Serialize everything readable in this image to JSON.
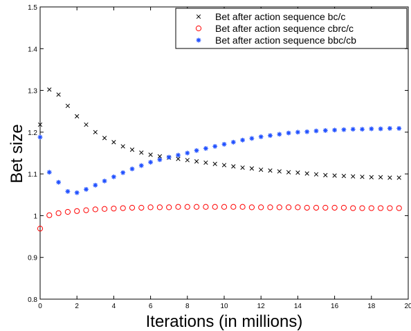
{
  "chart_data": {
    "type": "scatter",
    "title": "",
    "xlabel": "Iterations (in millions)",
    "ylabel": "Bet size",
    "xlim": [
      0,
      20
    ],
    "ylim": [
      0.8,
      1.5
    ],
    "xticks": [
      0,
      2,
      4,
      6,
      8,
      10,
      12,
      14,
      16,
      18,
      20
    ],
    "yticks": [
      0.8,
      0.9,
      1,
      1.1,
      1.2,
      1.3,
      1.4,
      1.5
    ],
    "xtick_labels": [
      "0",
      "2",
      "4",
      "6",
      "8",
      "10",
      "12",
      "14",
      "16",
      "18",
      "20"
    ],
    "ytick_labels": [
      "0.8",
      "0.9",
      "1",
      "1.1",
      "1.2",
      "1.3",
      "1.4",
      "1.5"
    ],
    "grid": false,
    "legend_position": "top-right",
    "series": [
      {
        "name": "Bet after action sequence bc/c",
        "marker": "x",
        "color": "#000000",
        "x": [
          0.0,
          0.5,
          1.0,
          1.5,
          2.0,
          2.5,
          3.0,
          3.5,
          4.0,
          4.5,
          5.0,
          5.5,
          6.0,
          6.5,
          7.0,
          7.5,
          8.0,
          8.5,
          9.0,
          9.5,
          10.0,
          10.5,
          11.0,
          11.5,
          12.0,
          12.5,
          13.0,
          13.5,
          14.0,
          14.5,
          15.0,
          15.5,
          16.0,
          16.5,
          17.0,
          17.5,
          18.0,
          18.5,
          19.0,
          19.5
        ],
        "y": [
          1.218,
          1.302,
          1.29,
          1.263,
          1.238,
          1.218,
          1.2,
          1.186,
          1.176,
          1.166,
          1.158,
          1.151,
          1.146,
          1.142,
          1.139,
          1.136,
          1.133,
          1.13,
          1.127,
          1.124,
          1.121,
          1.118,
          1.115,
          1.113,
          1.11,
          1.108,
          1.106,
          1.104,
          1.103,
          1.101,
          1.099,
          1.097,
          1.096,
          1.095,
          1.094,
          1.093,
          1.092,
          1.092,
          1.091,
          1.091
        ]
      },
      {
        "name": "Bet after action sequence cbrc/c",
        "marker": "o",
        "color": "#ff0000",
        "x": [
          0.0,
          0.5,
          1.0,
          1.5,
          2.0,
          2.5,
          3.0,
          3.5,
          4.0,
          4.5,
          5.0,
          5.5,
          6.0,
          6.5,
          7.0,
          7.5,
          8.0,
          8.5,
          9.0,
          9.5,
          10.0,
          10.5,
          11.0,
          11.5,
          12.0,
          12.5,
          13.0,
          13.5,
          14.0,
          14.5,
          15.0,
          15.5,
          16.0,
          16.5,
          17.0,
          17.5,
          18.0,
          18.5,
          19.0,
          19.5
        ],
        "y": [
          0.969,
          1.001,
          1.006,
          1.009,
          1.011,
          1.013,
          1.015,
          1.016,
          1.017,
          1.018,
          1.019,
          1.019,
          1.02,
          1.02,
          1.02,
          1.021,
          1.021,
          1.021,
          1.021,
          1.021,
          1.021,
          1.021,
          1.021,
          1.02,
          1.02,
          1.02,
          1.02,
          1.02,
          1.02,
          1.019,
          1.019,
          1.019,
          1.019,
          1.019,
          1.018,
          1.018,
          1.018,
          1.018,
          1.018,
          1.018
        ]
      },
      {
        "name": "Bet after action sequence bbc/cb",
        "marker": "*",
        "color": "#1f4fff",
        "x": [
          0.0,
          0.5,
          1.0,
          1.5,
          2.0,
          2.5,
          3.0,
          3.5,
          4.0,
          4.5,
          5.0,
          5.5,
          6.0,
          6.5,
          7.0,
          7.5,
          8.0,
          8.5,
          9.0,
          9.5,
          10.0,
          10.5,
          11.0,
          11.5,
          12.0,
          12.5,
          13.0,
          13.5,
          14.0,
          14.5,
          15.0,
          15.5,
          16.0,
          16.5,
          17.0,
          17.5,
          18.0,
          18.5,
          19.0,
          19.5
        ],
        "y": [
          1.188,
          1.104,
          1.08,
          1.058,
          1.055,
          1.063,
          1.073,
          1.083,
          1.093,
          1.103,
          1.112,
          1.12,
          1.128,
          1.134,
          1.14,
          1.145,
          1.15,
          1.156,
          1.161,
          1.166,
          1.171,
          1.176,
          1.181,
          1.185,
          1.189,
          1.192,
          1.195,
          1.198,
          1.2,
          1.201,
          1.203,
          1.204,
          1.205,
          1.206,
          1.207,
          1.207,
          1.208,
          1.208,
          1.209,
          1.209
        ]
      }
    ]
  }
}
